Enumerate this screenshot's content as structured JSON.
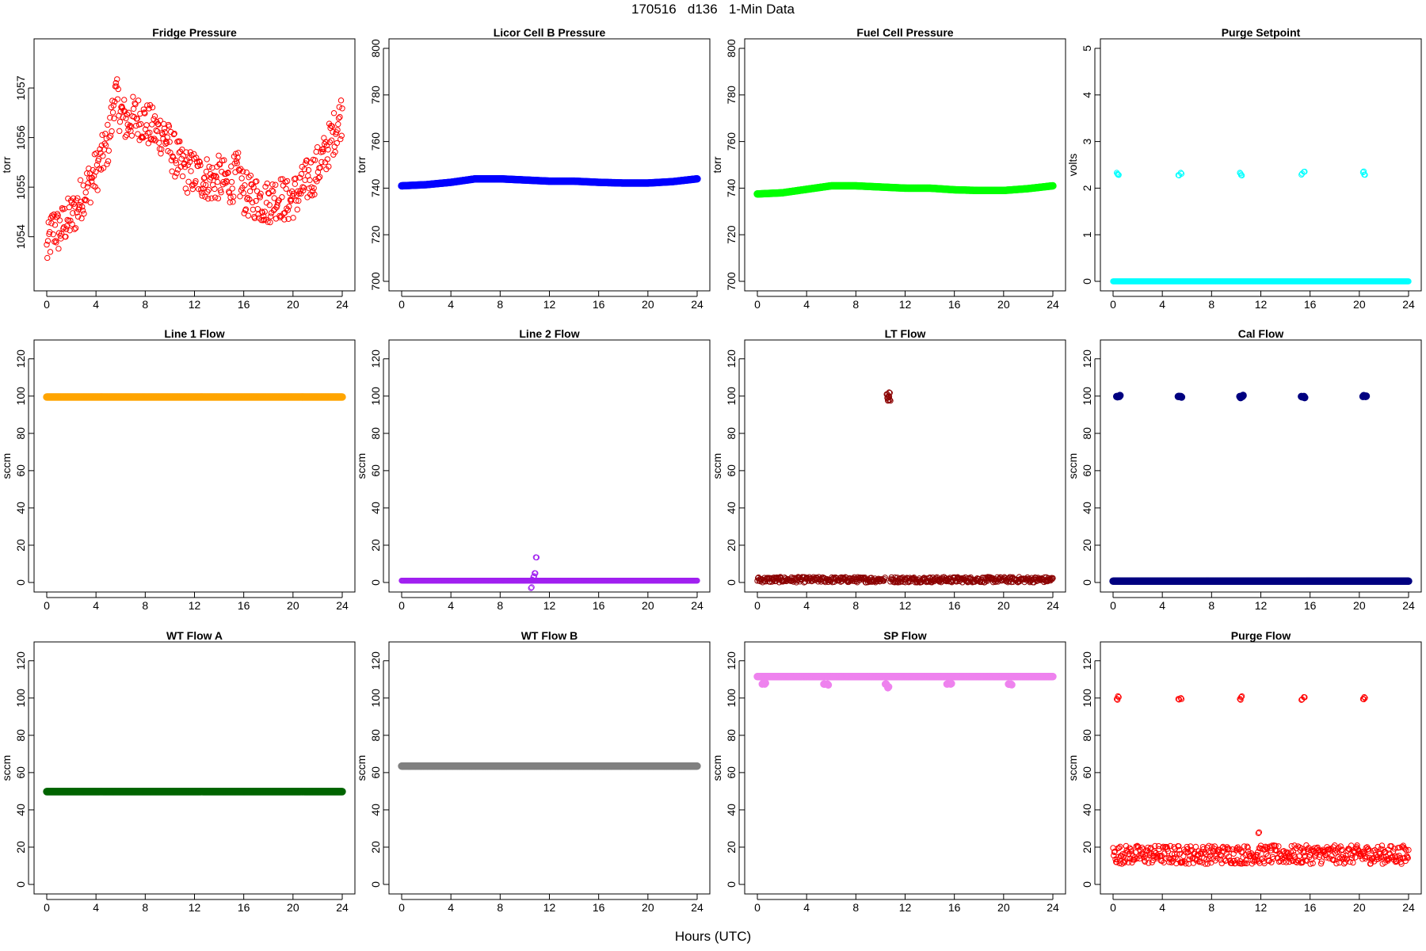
{
  "title": "170516   d136   1-Min Data",
  "xlabel": "Hours (UTC)",
  "chart_data": [
    {
      "type": "scatter",
      "title": "Fridge Pressure",
      "ylabel": "torr",
      "xlim": [
        0,
        24
      ],
      "ylim": [
        1053.1,
        1057.8
      ],
      "xticks": [
        0,
        4,
        8,
        12,
        16,
        20,
        24
      ],
      "yticks": [
        1054,
        1055,
        1056,
        1057
      ],
      "series": [
        {
          "color": "#ff0000",
          "marker": "open-circle",
          "points": [
            [
              0,
              1053.7
            ],
            [
              0.5,
              1054.2
            ],
            [
              1,
              1054.1
            ],
            [
              1.5,
              1054.3
            ],
            [
              2,
              1054.4
            ],
            [
              2.5,
              1054.6
            ],
            [
              3,
              1054.9
            ],
            [
              3.5,
              1055.1
            ],
            [
              4,
              1055.3
            ],
            [
              4.5,
              1055.6
            ],
            [
              5,
              1055.9
            ],
            [
              5.3,
              1056.4
            ],
            [
              5.5,
              1056.9
            ],
            [
              6,
              1056.5
            ],
            [
              6.5,
              1056.3
            ],
            [
              7,
              1056.4
            ],
            [
              7.5,
              1056.4
            ],
            [
              8,
              1056.3
            ],
            [
              8.5,
              1056.2
            ],
            [
              9,
              1056.1
            ],
            [
              9.5,
              1056.1
            ],
            [
              10,
              1055.8
            ],
            [
              10.5,
              1055.6
            ],
            [
              11,
              1055.4
            ],
            [
              11.5,
              1055.3
            ],
            [
              12,
              1055.3
            ],
            [
              12.5,
              1055.2
            ],
            [
              13,
              1055.2
            ],
            [
              13.5,
              1055.1
            ],
            [
              14,
              1055.2
            ],
            [
              14.5,
              1055.1
            ],
            [
              15,
              1055.1
            ],
            [
              15.5,
              1055.3
            ],
            [
              16,
              1054.9
            ],
            [
              16.5,
              1054.8
            ],
            [
              17,
              1054.8
            ],
            [
              17.5,
              1054.7
            ],
            [
              18,
              1054.7
            ],
            [
              18.5,
              1054.8
            ],
            [
              19,
              1054.8
            ],
            [
              19.5,
              1054.7
            ],
            [
              20,
              1054.8
            ],
            [
              20.5,
              1054.9
            ],
            [
              21,
              1055.1
            ],
            [
              21.5,
              1055.2
            ],
            [
              22,
              1055.4
            ],
            [
              22.5,
              1055.6
            ],
            [
              23,
              1055.9
            ],
            [
              23.5,
              1056.2
            ],
            [
              24,
              1056.5
            ]
          ]
        }
      ]
    },
    {
      "type": "scatter",
      "title": "Licor Cell B Pressure",
      "ylabel": "torr",
      "xlim": [
        0,
        24
      ],
      "ylim": [
        700,
        800
      ],
      "xticks": [
        0,
        4,
        8,
        12,
        16,
        20,
        24
      ],
      "yticks": [
        700,
        720,
        740,
        760,
        780,
        800
      ],
      "series": [
        {
          "color": "#0000ff",
          "marker": "filled-circle",
          "points": [
            [
              0,
              741
            ],
            [
              2,
              741.5
            ],
            [
              4,
              742.5
            ],
            [
              6,
              744
            ],
            [
              8,
              744
            ],
            [
              10,
              743.5
            ],
            [
              12,
              743
            ],
            [
              14,
              743
            ],
            [
              16,
              742.5
            ],
            [
              18,
              742.2
            ],
            [
              20,
              742.2
            ],
            [
              22,
              742.8
            ],
            [
              24,
              744
            ]
          ]
        }
      ]
    },
    {
      "type": "scatter",
      "title": "Fuel Cell Pressure",
      "ylabel": "torr",
      "xlim": [
        0,
        24
      ],
      "ylim": [
        700,
        800
      ],
      "xticks": [
        0,
        4,
        8,
        12,
        16,
        20,
        24
      ],
      "yticks": [
        700,
        720,
        740,
        760,
        780,
        800
      ],
      "series": [
        {
          "color": "#00ff00",
          "marker": "filled-circle",
          "points": [
            [
              0,
              737.5
            ],
            [
              2,
              738
            ],
            [
              4,
              739.5
            ],
            [
              6,
              741
            ],
            [
              8,
              741
            ],
            [
              10,
              740.5
            ],
            [
              12,
              740
            ],
            [
              14,
              740
            ],
            [
              16,
              739.3
            ],
            [
              18,
              739
            ],
            [
              20,
              739
            ],
            [
              22,
              739.8
            ],
            [
              24,
              741
            ]
          ]
        }
      ]
    },
    {
      "type": "scatter",
      "title": "Purge Setpoint",
      "ylabel": "volts",
      "xlim": [
        0,
        24
      ],
      "ylim": [
        0,
        5
      ],
      "xticks": [
        0,
        4,
        8,
        12,
        16,
        20,
        24
      ],
      "yticks": [
        0,
        1,
        2,
        3,
        4,
        5
      ],
      "series": [
        {
          "color": "#00ffff",
          "marker": "open-circle",
          "baseline": 0,
          "spikes": [
            [
              0.3,
              2.33
            ],
            [
              0.4,
              2.29
            ],
            [
              5.3,
              2.28
            ],
            [
              5.5,
              2.33
            ],
            [
              10.3,
              2.33
            ],
            [
              10.4,
              2.28
            ],
            [
              15.3,
              2.29
            ],
            [
              15.5,
              2.35
            ],
            [
              20.3,
              2.34
            ],
            [
              20.4,
              2.29
            ]
          ]
        }
      ]
    },
    {
      "type": "scatter",
      "title": "Line 1 Flow",
      "ylabel": "sccm",
      "xlim": [
        0,
        24
      ],
      "ylim": [
        0,
        125
      ],
      "xticks": [
        0,
        4,
        8,
        12,
        16,
        20,
        24
      ],
      "yticks": [
        0,
        20,
        40,
        60,
        80,
        100,
        120
      ],
      "series": [
        {
          "color": "#ffa500",
          "marker": "filled-circle",
          "points": [
            [
              0,
              99.5
            ],
            [
              24,
              99.5
            ]
          ]
        }
      ]
    },
    {
      "type": "scatter",
      "title": "Line 2 Flow",
      "ylabel": "sccm",
      "xlim": [
        0,
        24
      ],
      "ylim": [
        0,
        125
      ],
      "xticks": [
        0,
        4,
        8,
        12,
        16,
        20,
        24
      ],
      "yticks": [
        0,
        20,
        40,
        60,
        80,
        100,
        120
      ],
      "series": [
        {
          "color": "#a020f0",
          "marker": "open-circle",
          "baseline": 1,
          "spikes": [
            [
              10.5,
              -3
            ],
            [
              10.6,
              1.5
            ],
            [
              10.7,
              3
            ],
            [
              10.8,
              5
            ],
            [
              10.9,
              13.5
            ]
          ]
        }
      ]
    },
    {
      "type": "scatter",
      "title": "LT Flow",
      "ylabel": "sccm",
      "xlim": [
        0,
        24
      ],
      "ylim": [
        0,
        125
      ],
      "xticks": [
        0,
        4,
        8,
        12,
        16,
        20,
        24
      ],
      "yticks": [
        0,
        20,
        40,
        60,
        80,
        100,
        120
      ],
      "series": [
        {
          "color": "#8b0000",
          "marker": "open-circle",
          "baseline": 1.5,
          "noise": 3,
          "gap": [
            10.4,
            10.8
          ],
          "spikes": [
            [
              10.5,
              101
            ],
            [
              10.55,
              99
            ],
            [
              10.6,
              97.5
            ],
            [
              10.65,
              100
            ],
            [
              10.7,
              102
            ],
            [
              10.75,
              98
            ]
          ]
        }
      ]
    },
    {
      "type": "scatter",
      "title": "Cal Flow",
      "ylabel": "sccm",
      "xlim": [
        0,
        24
      ],
      "ylim": [
        0,
        125
      ],
      "xticks": [
        0,
        4,
        8,
        12,
        16,
        20,
        24
      ],
      "yticks": [
        0,
        20,
        40,
        60,
        80,
        100,
        120
      ],
      "series": [
        {
          "color": "#000080",
          "marker": "filled-circle",
          "baseline": 0.7,
          "spikes": [
            [
              0.3,
              99.8
            ],
            [
              0.5,
              99.8
            ],
            [
              5.3,
              99.8
            ],
            [
              5.5,
              99.8
            ],
            [
              10.3,
              99.8
            ],
            [
              10.5,
              99.8
            ],
            [
              15.3,
              99.8
            ],
            [
              15.5,
              99.8
            ],
            [
              20.3,
              99.8
            ],
            [
              20.5,
              99.8
            ]
          ]
        }
      ]
    },
    {
      "type": "scatter",
      "title": "WT Flow A",
      "ylabel": "sccm",
      "xlim": [
        0,
        24
      ],
      "ylim": [
        0,
        125
      ],
      "xticks": [
        0,
        4,
        8,
        12,
        16,
        20,
        24
      ],
      "yticks": [
        0,
        20,
        40,
        60,
        80,
        100,
        120
      ],
      "series": [
        {
          "color": "#006400",
          "marker": "filled-circle",
          "points": [
            [
              0,
              49.8
            ],
            [
              24,
              49.8
            ]
          ]
        }
      ]
    },
    {
      "type": "scatter",
      "title": "WT Flow B",
      "ylabel": "sccm",
      "xlim": [
        0,
        24
      ],
      "ylim": [
        0,
        125
      ],
      "xticks": [
        0,
        4,
        8,
        12,
        16,
        20,
        24
      ],
      "yticks": [
        0,
        20,
        40,
        60,
        80,
        100,
        120
      ],
      "series": [
        {
          "color": "#808080",
          "marker": "filled-circle",
          "points": [
            [
              0,
              63.5
            ],
            [
              24,
              63.5
            ]
          ]
        }
      ]
    },
    {
      "type": "scatter",
      "title": "SP Flow",
      "ylabel": "sccm",
      "xlim": [
        0,
        24
      ],
      "ylim": [
        0,
        125
      ],
      "xticks": [
        0,
        4,
        8,
        12,
        16,
        20,
        24
      ],
      "yticks": [
        0,
        20,
        40,
        60,
        80,
        100,
        120
      ],
      "series": [
        {
          "color": "#ee82ee",
          "marker": "filled-circle",
          "baseline": 111.5,
          "spikes": [
            [
              0.4,
              107.5
            ],
            [
              0.6,
              107.5
            ],
            [
              5.4,
              107.5
            ],
            [
              5.7,
              107.5
            ],
            [
              10.4,
              107.5
            ],
            [
              10.6,
              105.5
            ],
            [
              15.4,
              107.5
            ],
            [
              15.7,
              107.5
            ],
            [
              20.4,
              107.5
            ],
            [
              20.6,
              107.5
            ]
          ]
        }
      ]
    },
    {
      "type": "scatter",
      "title": "Purge Flow",
      "ylabel": "sccm",
      "xlim": [
        0,
        24
      ],
      "ylim": [
        0,
        125
      ],
      "xticks": [
        0,
        4,
        8,
        12,
        16,
        20,
        24
      ],
      "yticks": [
        0,
        20,
        40,
        60,
        80,
        100,
        120
      ],
      "series": [
        {
          "color": "#ff0000",
          "marker": "open-circle",
          "baseline": 16,
          "noise": 10,
          "spikes": [
            [
              0.3,
              99.5
            ],
            [
              0.4,
              101
            ],
            [
              5.3,
              99.5
            ],
            [
              5.5,
              100
            ],
            [
              10.3,
              99.5
            ],
            [
              10.4,
              100.5
            ],
            [
              15.3,
              99
            ],
            [
              15.5,
              100.5
            ],
            [
              20.3,
              99.5
            ],
            [
              20.4,
              100.5
            ],
            [
              11.8,
              27.5
            ]
          ]
        }
      ]
    }
  ]
}
